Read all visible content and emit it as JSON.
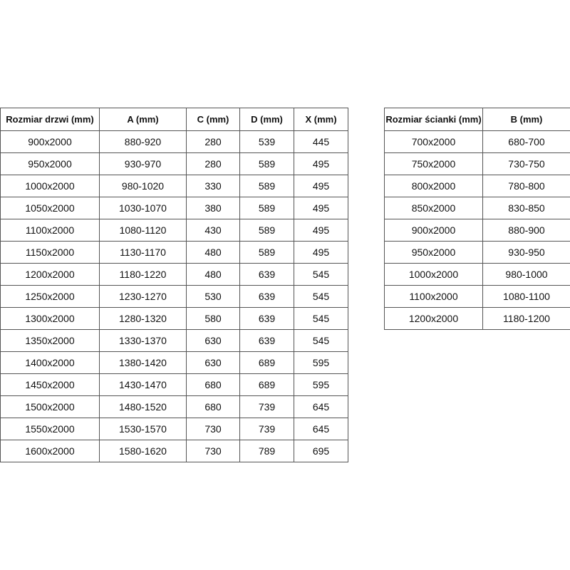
{
  "door_table": {
    "headers": [
      "Rozmiar drzwi (mm)",
      "A (mm)",
      "C (mm)",
      "D (mm)",
      "X (mm)"
    ],
    "rows": [
      [
        "900x2000",
        "880-920",
        "280",
        "539",
        "445"
      ],
      [
        "950x2000",
        "930-970",
        "280",
        "589",
        "495"
      ],
      [
        "1000x2000",
        "980-1020",
        "330",
        "589",
        "495"
      ],
      [
        "1050x2000",
        "1030-1070",
        "380",
        "589",
        "495"
      ],
      [
        "1100x2000",
        "1080-1120",
        "430",
        "589",
        "495"
      ],
      [
        "1150x2000",
        "1130-1170",
        "480",
        "589",
        "495"
      ],
      [
        "1200x2000",
        "1180-1220",
        "480",
        "639",
        "545"
      ],
      [
        "1250x2000",
        "1230-1270",
        "530",
        "639",
        "545"
      ],
      [
        "1300x2000",
        "1280-1320",
        "580",
        "639",
        "545"
      ],
      [
        "1350x2000",
        "1330-1370",
        "630",
        "639",
        "545"
      ],
      [
        "1400x2000",
        "1380-1420",
        "630",
        "689",
        "595"
      ],
      [
        "1450x2000",
        "1430-1470",
        "680",
        "689",
        "595"
      ],
      [
        "1500x2000",
        "1480-1520",
        "680",
        "739",
        "645"
      ],
      [
        "1550x2000",
        "1530-1570",
        "730",
        "739",
        "645"
      ],
      [
        "1600x2000",
        "1580-1620",
        "730",
        "789",
        "695"
      ]
    ]
  },
  "wall_table": {
    "headers": [
      "Rozmiar ścianki (mm)",
      "B (mm)"
    ],
    "rows": [
      [
        "700x2000",
        "680-700"
      ],
      [
        "750x2000",
        "730-750"
      ],
      [
        "800x2000",
        "780-800"
      ],
      [
        "850x2000",
        "830-850"
      ],
      [
        "900x2000",
        "880-900"
      ],
      [
        "950x2000",
        "930-950"
      ],
      [
        "1000x2000",
        "980-1000"
      ],
      [
        "1100x2000",
        "1080-1100"
      ],
      [
        "1200x2000",
        "1180-1200"
      ]
    ]
  }
}
